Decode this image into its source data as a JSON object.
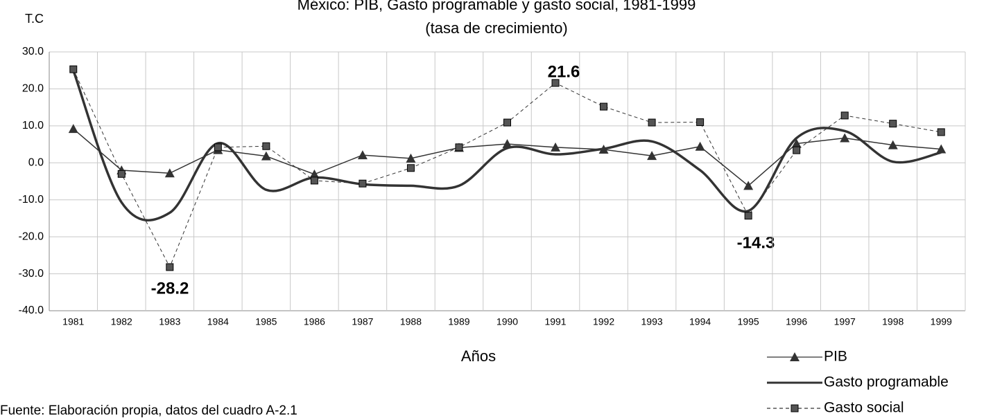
{
  "chart_data": {
    "type": "line",
    "title": "México: PIB, Gasto programable y gasto social, 1981-1999",
    "subtitle": "(tasa de crecimiento)",
    "y_label": "T.C",
    "x_label": "Años",
    "source": "Fuente: Elaboración propia, datos del cuadro A-2.1",
    "categories": [
      "1981",
      "1982",
      "1983",
      "1984",
      "1985",
      "1986",
      "1987",
      "1988",
      "1989",
      "1990",
      "1991",
      "1992",
      "1993",
      "1994",
      "1995",
      "1996",
      "1997",
      "1998",
      "1999"
    ],
    "series": [
      {
        "name": "PIB",
        "color": "#333333",
        "marker": "triangle",
        "style": "solid",
        "width": 1.5,
        "values": [
          9.2,
          -2.0,
          -2.8,
          3.5,
          1.8,
          -3.1,
          2.1,
          1.2,
          4.1,
          5.1,
          4.2,
          3.6,
          1.9,
          4.4,
          -6.2,
          5.2,
          6.7,
          4.8,
          3.7
        ]
      },
      {
        "name": "Gasto programable",
        "color": "#333333",
        "marker": "none",
        "style": "smooth",
        "width": 3.5,
        "values": [
          25.0,
          -10.7,
          -13.5,
          5.3,
          -7.3,
          -4.0,
          -5.8,
          -6.2,
          -6.2,
          4.0,
          2.3,
          3.8,
          5.8,
          -2.0,
          -13.0,
          6.7,
          8.6,
          0.3,
          2.8
        ]
      },
      {
        "name": "Gasto social",
        "color": "#333333",
        "marker": "square",
        "style": "dashed",
        "width": 1,
        "values": [
          25.3,
          -3.0,
          -28.2,
          4.2,
          4.5,
          -4.8,
          -5.6,
          -1.4,
          4.2,
          10.9,
          21.6,
          15.2,
          10.9,
          11.0,
          -14.3,
          3.4,
          12.8,
          10.6,
          8.3
        ]
      }
    ],
    "annotations": [
      "21.6",
      "-28.2",
      "-14.3"
    ],
    "ylim": [
      -40,
      30
    ],
    "yticks": [
      {
        "value": -40,
        "label": "-40.0"
      },
      {
        "value": -30,
        "label": "-30.0"
      },
      {
        "value": -20,
        "label": "-20.0"
      },
      {
        "value": -10,
        "label": "-10.0"
      },
      {
        "value": 0,
        "label": "0.0"
      },
      {
        "value": 10,
        "label": "10.0"
      },
      {
        "value": 20,
        "label": "20.0"
      },
      {
        "value": 30,
        "label": "30.0"
      }
    ],
    "grid": true,
    "legend": "bottom-right"
  }
}
